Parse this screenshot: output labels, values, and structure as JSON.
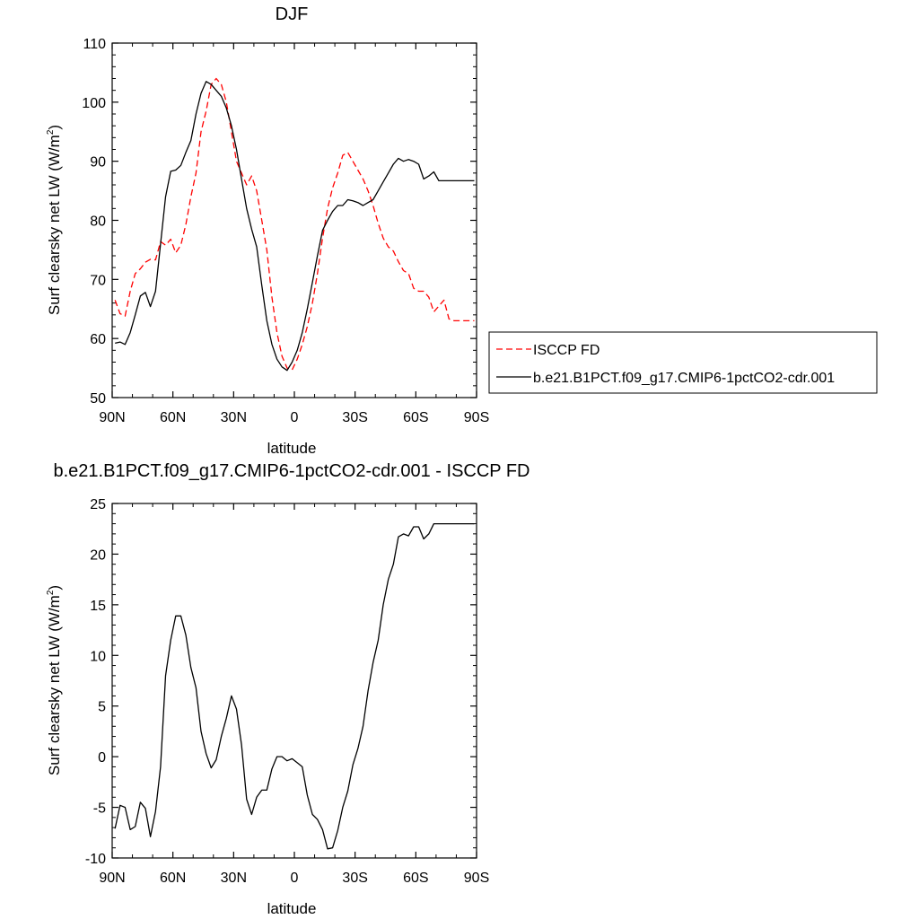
{
  "chart_data": [
    {
      "type": "line",
      "title": "DJF",
      "xlabel": "latitude",
      "ylabel": "Surf clearsky net LW (W/m",
      "ylabel_sup": "2",
      "ylabel_close": ")",
      "xlim": [
        90,
        -90
      ],
      "ylim": [
        50,
        110
      ],
      "yticks": [
        50,
        60,
        70,
        80,
        90,
        100,
        110
      ],
      "xticks": [
        90,
        60,
        30,
        0,
        -30,
        -60,
        -90
      ],
      "xticklabels": [
        "90N",
        "60N",
        "30N",
        "0",
        "30S",
        "60S",
        "90S"
      ],
      "grid": false,
      "legend_position": "right",
      "series": [
        {
          "name": "ISCCP FD",
          "color": "#ff0000",
          "dash": "dashed",
          "x": [
            88.6,
            86.1,
            83.6,
            81.1,
            78.6,
            76.1,
            73.6,
            71.1,
            68.6,
            66.1,
            63.6,
            61.1,
            58.6,
            56.1,
            53.6,
            51.1,
            48.6,
            46.1,
            43.6,
            41.1,
            38.6,
            36.1,
            33.6,
            31.1,
            28.6,
            26.1,
            23.6,
            21.1,
            18.6,
            16.1,
            13.6,
            11.1,
            8.6,
            6.1,
            3.6,
            1.1,
            -1.4,
            -3.9,
            -6.4,
            -8.9,
            -11.4,
            -13.9,
            -16.4,
            -18.9,
            -21.4,
            -23.9,
            -26.4,
            -28.9,
            -31.4,
            -33.9,
            -36.4,
            -38.9,
            -41.4,
            -43.9,
            -46.4,
            -48.9,
            -51.4,
            -53.9,
            -56.4,
            -58.9,
            -61.4,
            -63.9,
            -66.4,
            -68.9,
            -71.4,
            -73.9,
            -76.4,
            -78.9,
            -81.4,
            -83.9,
            -86.4,
            -88.9
          ],
          "y": [
            66.5,
            64.2,
            63.8,
            68.0,
            71.0,
            71.8,
            72.9,
            73.4,
            73.3,
            76.4,
            75.8,
            76.8,
            74.5,
            75.8,
            79.3,
            84.0,
            88.0,
            95.0,
            98.5,
            103.0,
            104.0,
            103.0,
            100.0,
            95.0,
            90.0,
            88.0,
            86.0,
            87.5,
            85.0,
            80.0,
            75.0,
            67.0,
            61.0,
            57.0,
            55.0,
            54.7,
            56.5,
            59.0,
            62.0,
            66.0,
            71.0,
            77.0,
            82.0,
            85.5,
            88.0,
            91.0,
            91.5,
            90.0,
            88.5,
            87.0,
            85.0,
            82.5,
            79.5,
            77.0,
            75.5,
            74.8,
            73.0,
            71.5,
            71.0,
            68.5,
            68.0,
            68.0,
            67.0,
            64.5,
            65.5,
            66.5,
            63.3,
            63.0,
            63.0,
            63.0,
            63.0,
            63.0
          ]
        },
        {
          "name": "b.e21.B1PCT.f09_g17.CMIP6-1pctCO2-cdr.001",
          "color": "#000000",
          "dash": "solid",
          "x": [
            88.6,
            86.1,
            83.6,
            81.1,
            78.6,
            76.1,
            73.6,
            71.1,
            68.6,
            66.1,
            63.6,
            61.1,
            58.6,
            56.1,
            53.6,
            51.1,
            48.6,
            46.1,
            43.6,
            41.1,
            38.6,
            36.1,
            33.6,
            31.1,
            28.6,
            26.1,
            23.6,
            21.1,
            18.6,
            16.1,
            13.6,
            11.1,
            8.6,
            6.1,
            3.6,
            1.1,
            -1.4,
            -3.9,
            -6.4,
            -8.9,
            -11.4,
            -13.9,
            -16.4,
            -18.9,
            -21.4,
            -23.9,
            -26.4,
            -28.9,
            -31.4,
            -33.9,
            -36.4,
            -38.9,
            -41.4,
            -43.9,
            -46.4,
            -48.9,
            -51.4,
            -53.9,
            -56.4,
            -58.9,
            -61.4,
            -63.9,
            -66.4,
            -68.9,
            -71.4,
            -73.9,
            -76.4,
            -78.9,
            -81.4,
            -83.9,
            -86.4,
            -88.9
          ],
          "y": [
            59.2,
            59.4,
            59.0,
            61.0,
            64.0,
            67.2,
            67.8,
            65.4,
            68.0,
            76.0,
            84.0,
            88.3,
            88.5,
            89.3,
            91.5,
            93.5,
            98.0,
            101.5,
            103.5,
            103.0,
            102.0,
            101.0,
            99.0,
            96.0,
            92.0,
            87.0,
            82.0,
            78.5,
            75.5,
            69.0,
            63.0,
            59.0,
            56.5,
            55.2,
            54.6,
            56.0,
            58.0,
            61.0,
            65.0,
            69.5,
            74.0,
            78.3,
            80.0,
            81.5,
            82.5,
            82.5,
            83.5,
            83.3,
            83.0,
            82.5,
            83.0,
            83.5,
            85.0,
            86.5,
            88.0,
            89.5,
            90.5,
            90.0,
            90.3,
            90.0,
            89.5,
            87.0,
            87.5,
            88.2,
            86.7,
            86.7,
            86.7,
            86.7,
            86.7,
            86.7,
            86.7,
            86.7
          ]
        }
      ]
    },
    {
      "type": "line",
      "title": "b.e21.B1PCT.f09_g17.CMIP6-1pctCO2-cdr.001 - ISCCP FD",
      "xlabel": "latitude",
      "ylabel": "Surf clearsky net LW (W/m",
      "ylabel_sup": "2",
      "ylabel_close": ")",
      "xlim": [
        90,
        -90
      ],
      "ylim": [
        -10,
        25
      ],
      "yticks": [
        -10,
        -5,
        0,
        5,
        10,
        15,
        20,
        25
      ],
      "xticks": [
        90,
        60,
        30,
        0,
        -30,
        -60,
        -90
      ],
      "xticklabels": [
        "90N",
        "60N",
        "30N",
        "0",
        "30S",
        "60S",
        "90S"
      ],
      "grid": false,
      "series": [
        {
          "color": "#000000",
          "dash": "solid",
          "x": [
            88.6,
            86.1,
            83.6,
            81.1,
            78.6,
            76.1,
            73.6,
            71.1,
            68.6,
            66.1,
            63.6,
            61.1,
            58.6,
            56.1,
            53.6,
            51.1,
            48.6,
            46.1,
            43.6,
            41.1,
            38.6,
            36.1,
            33.6,
            31.1,
            28.6,
            26.1,
            23.6,
            21.1,
            18.6,
            16.1,
            13.6,
            11.1,
            8.6,
            6.1,
            3.6,
            1.1,
            -1.4,
            -3.9,
            -6.4,
            -8.9,
            -11.4,
            -13.9,
            -16.4,
            -18.9,
            -21.4,
            -23.9,
            -26.4,
            -28.9,
            -31.4,
            -33.9,
            -36.4,
            -38.9,
            -41.4,
            -43.9,
            -46.4,
            -48.9,
            -51.4,
            -53.9,
            -56.4,
            -58.9,
            -61.4,
            -63.9,
            -66.4,
            -68.9,
            -71.4,
            -73.9,
            -76.4,
            -78.9,
            -81.4,
            -83.9,
            -86.4,
            -88.9
          ],
          "y": [
            -7.1,
            -4.8,
            -5.0,
            -7.2,
            -6.9,
            -4.5,
            -5.1,
            -7.9,
            -5.4,
            -1.0,
            8.0,
            11.5,
            13.9,
            13.9,
            12.0,
            8.8,
            6.8,
            2.5,
            0.3,
            -1.1,
            -0.3,
            2.0,
            3.8,
            6.0,
            4.7,
            1.2,
            -4.2,
            -5.7,
            -4.0,
            -3.3,
            -3.3,
            -1.2,
            0.0,
            0.0,
            -0.4,
            -0.2,
            -0.6,
            -1.0,
            -3.8,
            -5.7,
            -6.2,
            -7.2,
            -9.1,
            -9.0,
            -7.3,
            -5.0,
            -3.4,
            -0.8,
            0.8,
            3.0,
            6.5,
            9.3,
            11.5,
            15.0,
            17.5,
            19.0,
            21.7,
            22.0,
            21.8,
            22.7,
            22.7,
            21.5,
            22.0,
            23.0,
            23.0,
            23.0,
            23.0,
            23.0,
            23.0,
            23.0,
            23.0,
            23.0
          ]
        }
      ]
    }
  ]
}
